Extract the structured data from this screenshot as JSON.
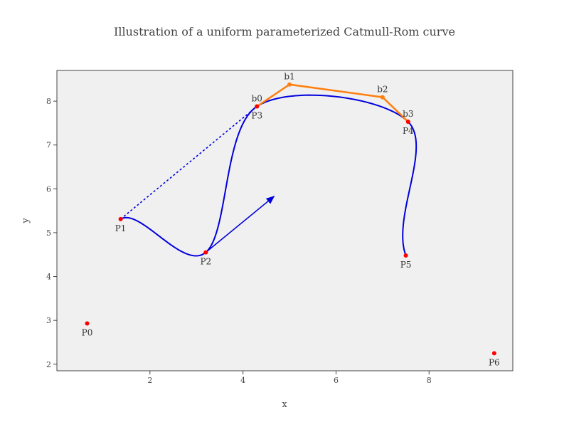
{
  "chart_data": {
    "type": "scatter",
    "title": "Illustration of a  uniform parameterized Catmull-Rom curve",
    "xlabel": "x",
    "ylabel": "y",
    "xlim": [
      0.0,
      9.8
    ],
    "ylim": [
      1.85,
      8.7
    ],
    "x_ticks": [
      2,
      4,
      6,
      8
    ],
    "y_ticks": [
      2,
      3,
      4,
      5,
      6,
      7,
      8
    ],
    "grid": false,
    "legend": "none",
    "plot_background": "#f0f0f0",
    "control_points": [
      {
        "label": "P0",
        "x": 0.65,
        "y": 2.93
      },
      {
        "label": "P1",
        "x": 1.37,
        "y": 5.31
      },
      {
        "label": "P2",
        "x": 3.2,
        "y": 4.55
      },
      {
        "label": "P3",
        "x": 4.3,
        "y": 7.88
      },
      {
        "label": "P4",
        "x": 7.55,
        "y": 7.53
      },
      {
        "label": "P5",
        "x": 7.5,
        "y": 4.48
      },
      {
        "label": "P6",
        "x": 9.4,
        "y": 2.25
      }
    ],
    "bezier_points": [
      {
        "label": "b0",
        "x": 4.3,
        "y": 7.88
      },
      {
        "label": "b1",
        "x": 5.0,
        "y": 8.38
      },
      {
        "label": "b2",
        "x": 7.0,
        "y": 8.09
      },
      {
        "label": "b3",
        "x": 7.55,
        "y": 7.53
      }
    ],
    "tangent_line": {
      "from": [
        1.37,
        5.31
      ],
      "to": [
        4.3,
        7.88
      ]
    },
    "tangent_arrow": {
      "from": [
        3.2,
        4.55
      ],
      "to": [
        4.67,
        5.83
      ]
    },
    "colors": {
      "control_point": "#ff0000",
      "curve": "#0000dd",
      "bezier_polygon": "#ff7f0e"
    }
  }
}
